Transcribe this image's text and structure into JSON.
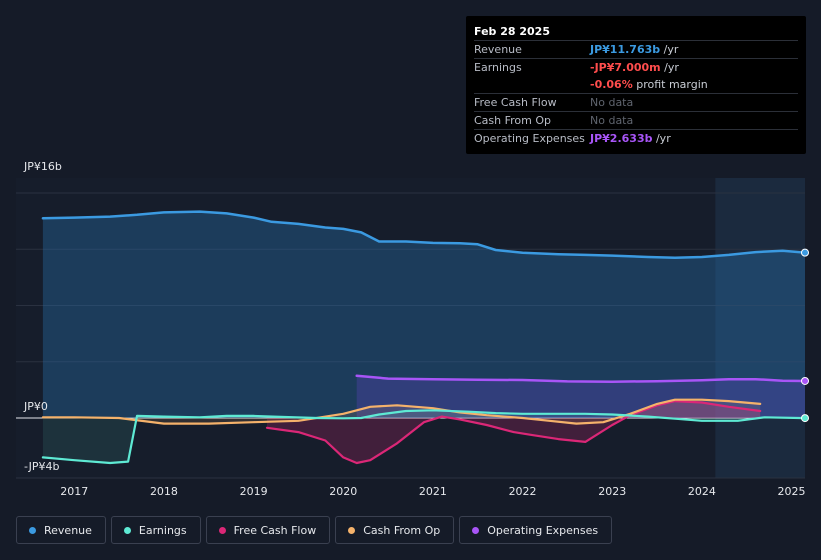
{
  "tooltip": {
    "date": "Feb 28 2025",
    "rows": [
      {
        "key": "Revenue",
        "value": "JP¥11.763b",
        "suffix": " /yr",
        "color": "#3b9ae1"
      },
      {
        "key": "Earnings",
        "value": "-JP¥7.000m",
        "suffix": " /yr",
        "color": "#ff4d4d"
      },
      {
        "key": "",
        "value": "-0.06%",
        "suffix": " profit margin",
        "color": "#ff4d4d"
      },
      {
        "key": "Free Cash Flow",
        "value": "No data",
        "suffix": "",
        "color": "muted"
      },
      {
        "key": "Cash From Op",
        "value": "No data",
        "suffix": "",
        "color": "muted"
      },
      {
        "key": "Operating Expenses",
        "value": "JP¥2.633b",
        "suffix": " /yr",
        "color": "#a855f7"
      }
    ]
  },
  "chart_data": {
    "type": "line",
    "y_labels": [
      "JP¥16b",
      "JP¥0",
      "-JP¥4b"
    ],
    "x_ticks": [
      "2017",
      "2018",
      "2019",
      "2020",
      "2021",
      "2022",
      "2023",
      "2024",
      "2025"
    ],
    "xlim": [
      2016.35,
      2025.15
    ],
    "ylim": [
      -4,
      16
    ],
    "highlight_from": 2024.15,
    "series": [
      {
        "name": "Revenue",
        "color": "#3b9ae1",
        "fill": true,
        "x": [
          2016.65,
          2017.0,
          2017.4,
          2017.7,
          2018.0,
          2018.4,
          2018.7,
          2019.0,
          2019.2,
          2019.5,
          2019.8,
          2020.0,
          2020.2,
          2020.4,
          2020.7,
          2021.0,
          2021.3,
          2021.5,
          2021.7,
          2022.0,
          2022.4,
          2022.7,
          2023.0,
          2023.4,
          2023.7,
          2024.0,
          2024.3,
          2024.6,
          2024.9,
          2025.15
        ],
        "y": [
          14.2,
          14.25,
          14.32,
          14.45,
          14.62,
          14.68,
          14.55,
          14.25,
          13.95,
          13.8,
          13.55,
          13.45,
          13.2,
          12.55,
          12.55,
          12.45,
          12.42,
          12.35,
          11.95,
          11.75,
          11.65,
          11.6,
          11.55,
          11.45,
          11.4,
          11.45,
          11.6,
          11.8,
          11.9,
          11.76
        ]
      },
      {
        "name": "Earnings",
        "color": "#5eead4",
        "fill": true,
        "x": [
          2016.65,
          2017.0,
          2017.4,
          2017.6,
          2017.7,
          2018.0,
          2018.4,
          2018.7,
          2019.0,
          2019.3,
          2019.7,
          2020.0,
          2020.2,
          2020.4,
          2020.7,
          2021.0,
          2021.4,
          2021.7,
          2022.0,
          2022.4,
          2022.7,
          2023.0,
          2023.4,
          2023.7,
          2024.0,
          2024.4,
          2024.7,
          2025.15
        ],
        "y": [
          -2.8,
          -3.0,
          -3.2,
          -3.1,
          0.15,
          0.1,
          0.05,
          0.15,
          0.15,
          0.08,
          0.0,
          -0.02,
          0.0,
          0.25,
          0.5,
          0.55,
          0.45,
          0.35,
          0.3,
          0.3,
          0.3,
          0.25,
          0.1,
          -0.05,
          -0.2,
          -0.2,
          0.05,
          -0.007
        ]
      },
      {
        "name": "Free Cash Flow",
        "color": "#db2777",
        "fill": true,
        "x": [
          2019.15,
          2019.5,
          2019.8,
          2020.0,
          2020.15,
          2020.3,
          2020.6,
          2020.9,
          2021.1,
          2021.3,
          2021.6,
          2021.9,
          2022.1,
          2022.4,
          2022.7,
          2023.0,
          2023.2,
          2023.5,
          2023.7,
          2024.0,
          2024.3,
          2024.65
        ],
        "y": [
          -0.7,
          -1.0,
          -1.6,
          -2.8,
          -3.2,
          -3.0,
          -1.8,
          -0.3,
          0.1,
          -0.1,
          -0.5,
          -1.0,
          -1.2,
          -1.5,
          -1.7,
          -0.5,
          0.2,
          0.9,
          1.2,
          1.1,
          0.8,
          0.5
        ]
      },
      {
        "name": "Cash From Op",
        "color": "#f5b26b",
        "fill": true,
        "x": [
          2016.65,
          2017.0,
          2017.5,
          2018.0,
          2018.5,
          2019.0,
          2019.5,
          2020.0,
          2020.3,
          2020.6,
          2021.0,
          2021.3,
          2021.6,
          2022.0,
          2022.3,
          2022.6,
          2022.9,
          2023.2,
          2023.5,
          2023.7,
          2024.0,
          2024.3,
          2024.65
        ],
        "y": [
          0.05,
          0.05,
          0.0,
          -0.4,
          -0.4,
          -0.3,
          -0.2,
          0.3,
          0.8,
          0.9,
          0.7,
          0.4,
          0.2,
          0.0,
          -0.2,
          -0.4,
          -0.3,
          0.3,
          1.0,
          1.3,
          1.3,
          1.2,
          1.0
        ]
      },
      {
        "name": "Operating Expenses",
        "color": "#a855f7",
        "fill": true,
        "x": [
          2020.15,
          2020.5,
          2021.0,
          2021.5,
          2022.0,
          2022.5,
          2023.0,
          2023.5,
          2024.0,
          2024.3,
          2024.6,
          2024.9,
          2025.15
        ],
        "y": [
          3.0,
          2.8,
          2.75,
          2.72,
          2.7,
          2.6,
          2.58,
          2.62,
          2.68,
          2.75,
          2.76,
          2.65,
          2.633
        ]
      }
    ]
  },
  "legend": [
    "Revenue",
    "Earnings",
    "Free Cash Flow",
    "Cash From Op",
    "Operating Expenses"
  ]
}
